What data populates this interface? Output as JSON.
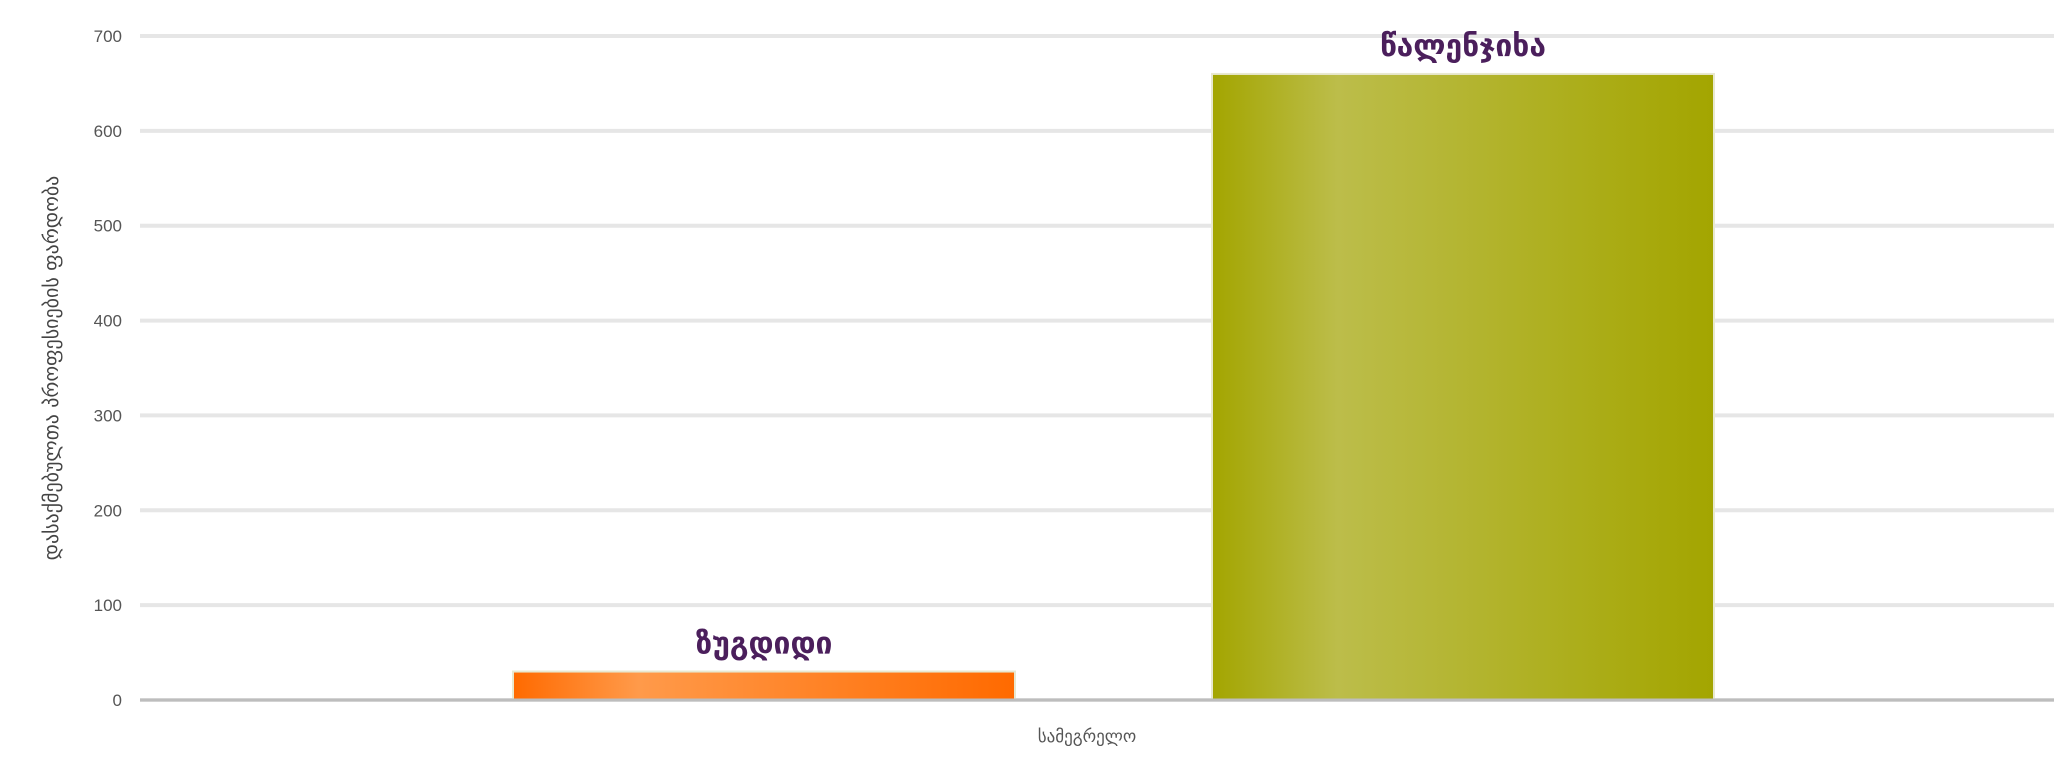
{
  "chart_data": {
    "type": "bar",
    "ylabel": "დასაქმებულთა პროფესიების ფარდობა",
    "xlabel": "სამეგრელო",
    "ylim": [
      0,
      700
    ],
    "yticks": [
      0,
      100,
      200,
      300,
      400,
      500,
      600,
      700
    ],
    "grid": true,
    "legend": "none",
    "series": [
      {
        "name": "ზუგდიდი",
        "value": 30,
        "color": "#ff6a00",
        "highlight": "#ff9a4a"
      },
      {
        "name": "წალენჯიხა",
        "value": 660,
        "color": "#a3a500",
        "highlight": "#bcbd4a"
      }
    ]
  }
}
